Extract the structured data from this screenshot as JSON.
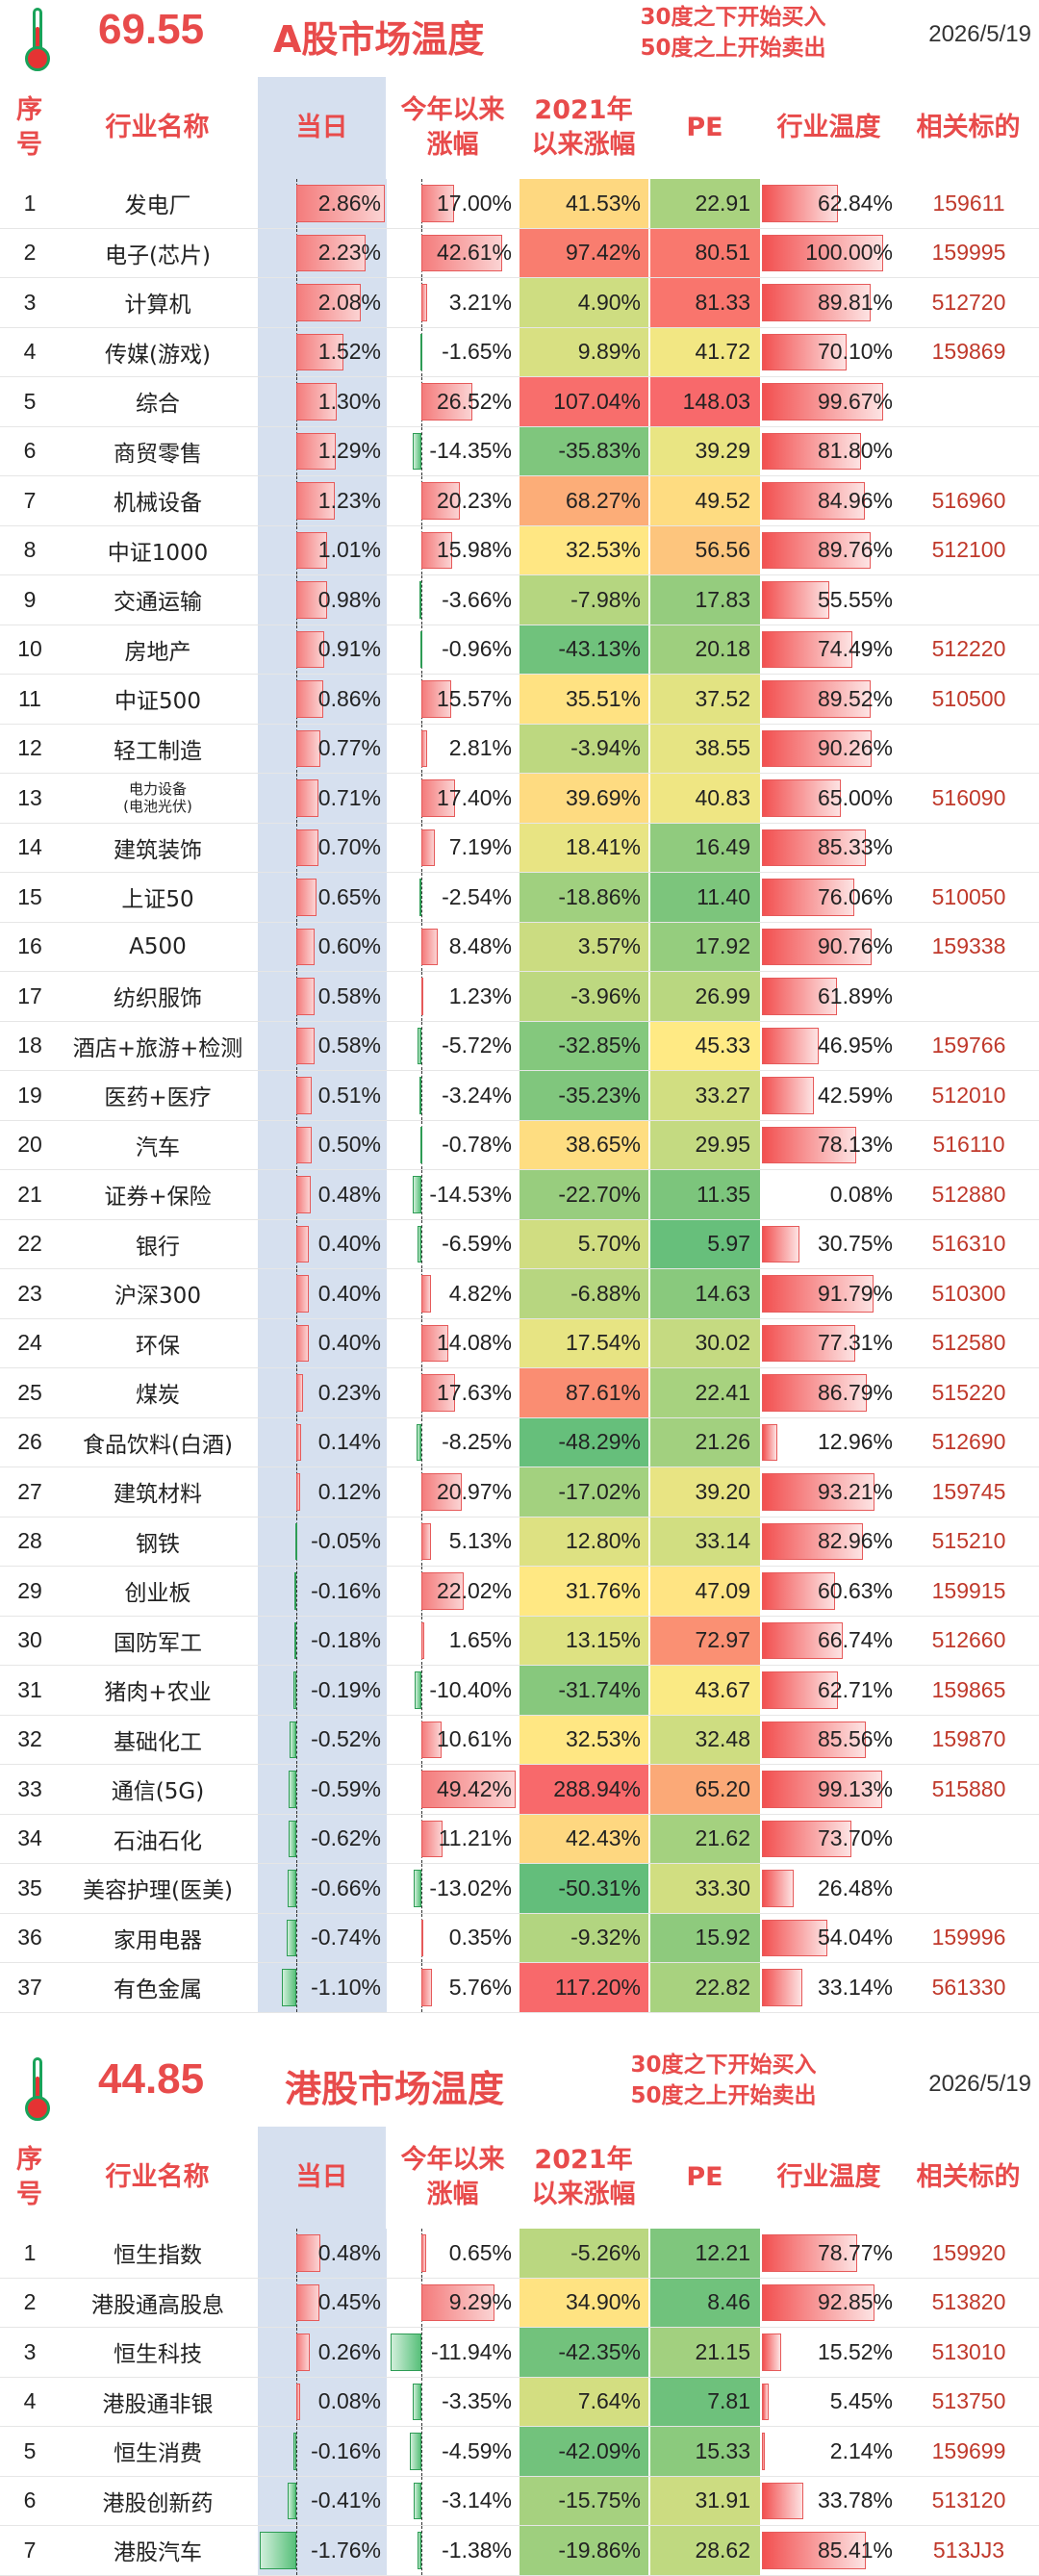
{
  "a_share": {
    "temperature": "69.55",
    "title": "A股市场温度",
    "note_buy": "30度之下开始买入",
    "note_sell": "50度之上开始卖出",
    "date": "2026/5/19",
    "columns": {
      "idx": "序号",
      "name": "行业名称",
      "day": "当日",
      "ytd": "今年以来涨幅",
      "since": "2021年以来涨幅",
      "pe": "PE",
      "temp": "行业温度",
      "code": "相关标的"
    },
    "rows": [
      {
        "idx": "1",
        "name": "发电厂",
        "day": "2.86%",
        "ytd": "17.00%",
        "since": "41.53%",
        "pe": "22.91",
        "temp": "62.84%",
        "code": "159611"
      },
      {
        "idx": "2",
        "name": "电子(芯片)",
        "day": "2.23%",
        "ytd": "42.61%",
        "since": "97.42%",
        "pe": "80.51",
        "temp": "100.00%",
        "code": "159995"
      },
      {
        "idx": "3",
        "name": "计算机",
        "day": "2.08%",
        "ytd": "3.21%",
        "since": "4.90%",
        "pe": "81.33",
        "temp": "89.81%",
        "code": "512720"
      },
      {
        "idx": "4",
        "name": "传媒(游戏)",
        "day": "1.52%",
        "ytd": "-1.65%",
        "since": "9.89%",
        "pe": "41.72",
        "temp": "70.10%",
        "code": "159869"
      },
      {
        "idx": "5",
        "name": "综合",
        "day": "1.30%",
        "ytd": "26.52%",
        "since": "107.04%",
        "pe": "148.03",
        "temp": "99.67%",
        "code": ""
      },
      {
        "idx": "6",
        "name": "商贸零售",
        "day": "1.29%",
        "ytd": "-14.35%",
        "since": "-35.83%",
        "pe": "39.29",
        "temp": "81.80%",
        "code": ""
      },
      {
        "idx": "7",
        "name": "机械设备",
        "day": "1.23%",
        "ytd": "20.23%",
        "since": "68.27%",
        "pe": "49.52",
        "temp": "84.96%",
        "code": "516960"
      },
      {
        "idx": "8",
        "name": "中证1000",
        "day": "1.01%",
        "ytd": "15.98%",
        "since": "32.53%",
        "pe": "56.56",
        "temp": "89.76%",
        "code": "512100"
      },
      {
        "idx": "9",
        "name": "交通运输",
        "day": "0.98%",
        "ytd": "-3.66%",
        "since": "-7.98%",
        "pe": "17.83",
        "temp": "55.55%",
        "code": ""
      },
      {
        "idx": "10",
        "name": "房地产",
        "day": "0.91%",
        "ytd": "-0.96%",
        "since": "-43.13%",
        "pe": "20.18",
        "temp": "74.49%",
        "code": "512220"
      },
      {
        "idx": "11",
        "name": "中证500",
        "day": "0.86%",
        "ytd": "15.57%",
        "since": "35.51%",
        "pe": "37.52",
        "temp": "89.52%",
        "code": "510500"
      },
      {
        "idx": "12",
        "name": "轻工制造",
        "day": "0.77%",
        "ytd": "2.81%",
        "since": "-3.94%",
        "pe": "38.55",
        "temp": "90.26%",
        "code": ""
      },
      {
        "idx": "13",
        "name": "电力设备",
        "name2": "(电池光伏)",
        "day": "0.71%",
        "ytd": "17.40%",
        "since": "39.69%",
        "pe": "40.83",
        "temp": "65.00%",
        "code": "516090"
      },
      {
        "idx": "14",
        "name": "建筑装饰",
        "day": "0.70%",
        "ytd": "7.19%",
        "since": "18.41%",
        "pe": "16.49",
        "temp": "85.33%",
        "code": ""
      },
      {
        "idx": "15",
        "name": "上证50",
        "day": "0.65%",
        "ytd": "-2.54%",
        "since": "-18.86%",
        "pe": "11.40",
        "temp": "76.06%",
        "code": "510050"
      },
      {
        "idx": "16",
        "name": "A500",
        "day": "0.60%",
        "ytd": "8.48%",
        "since": "3.57%",
        "pe": "17.92",
        "temp": "90.76%",
        "code": "159338"
      },
      {
        "idx": "17",
        "name": "纺织服饰",
        "day": "0.58%",
        "ytd": "1.23%",
        "since": "-3.96%",
        "pe": "26.99",
        "temp": "61.89%",
        "code": ""
      },
      {
        "idx": "18",
        "name": "酒店+旅游+检测",
        "day": "0.58%",
        "ytd": "-5.72%",
        "since": "-32.85%",
        "pe": "45.33",
        "temp": "46.95%",
        "code": "159766"
      },
      {
        "idx": "19",
        "name": "医药+医疗",
        "day": "0.51%",
        "ytd": "-3.24%",
        "since": "-35.23%",
        "pe": "33.27",
        "temp": "42.59%",
        "code": "512010"
      },
      {
        "idx": "20",
        "name": "汽车",
        "day": "0.50%",
        "ytd": "-0.78%",
        "since": "38.65%",
        "pe": "29.95",
        "temp": "78.13%",
        "code": "516110"
      },
      {
        "idx": "21",
        "name": "证券+保险",
        "day": "0.48%",
        "ytd": "-14.53%",
        "since": "-22.70%",
        "pe": "11.35",
        "temp": "0.08%",
        "code": "512880"
      },
      {
        "idx": "22",
        "name": "银行",
        "day": "0.40%",
        "ytd": "-6.59%",
        "since": "5.70%",
        "pe": "5.97",
        "temp": "30.75%",
        "code": "516310"
      },
      {
        "idx": "23",
        "name": "沪深300",
        "day": "0.40%",
        "ytd": "4.82%",
        "since": "-6.88%",
        "pe": "14.63",
        "temp": "91.79%",
        "code": "510300"
      },
      {
        "idx": "24",
        "name": "环保",
        "day": "0.40%",
        "ytd": "14.08%",
        "since": "17.54%",
        "pe": "30.02",
        "temp": "77.31%",
        "code": "512580"
      },
      {
        "idx": "25",
        "name": "煤炭",
        "day": "0.23%",
        "ytd": "17.63%",
        "since": "87.61%",
        "pe": "22.41",
        "temp": "86.79%",
        "code": "515220"
      },
      {
        "idx": "26",
        "name": "食品饮料(白酒)",
        "day": "0.14%",
        "ytd": "-8.25%",
        "since": "-48.29%",
        "pe": "21.26",
        "temp": "12.96%",
        "code": "512690"
      },
      {
        "idx": "27",
        "name": "建筑材料",
        "day": "0.12%",
        "ytd": "20.97%",
        "since": "-17.02%",
        "pe": "39.20",
        "temp": "93.21%",
        "code": "159745"
      },
      {
        "idx": "28",
        "name": "钢铁",
        "day": "-0.05%",
        "ytd": "5.13%",
        "since": "12.80%",
        "pe": "33.14",
        "temp": "82.96%",
        "code": "515210"
      },
      {
        "idx": "29",
        "name": "创业板",
        "day": "-0.16%",
        "ytd": "22.02%",
        "since": "31.76%",
        "pe": "47.09",
        "temp": "60.63%",
        "code": "159915"
      },
      {
        "idx": "30",
        "name": "国防军工",
        "day": "-0.18%",
        "ytd": "1.65%",
        "since": "13.15%",
        "pe": "72.97",
        "temp": "66.74%",
        "code": "512660"
      },
      {
        "idx": "31",
        "name": "猪肉+农业",
        "day": "-0.19%",
        "ytd": "-10.40%",
        "since": "-31.74%",
        "pe": "43.67",
        "temp": "62.71%",
        "code": "159865"
      },
      {
        "idx": "32",
        "name": "基础化工",
        "day": "-0.52%",
        "ytd": "10.61%",
        "since": "32.53%",
        "pe": "32.48",
        "temp": "85.56%",
        "code": "159870"
      },
      {
        "idx": "33",
        "name": "通信(5G)",
        "day": "-0.59%",
        "ytd": "49.42%",
        "since": "288.94%",
        "pe": "65.20",
        "temp": "99.13%",
        "code": "515880"
      },
      {
        "idx": "34",
        "name": "石油石化",
        "day": "-0.62%",
        "ytd": "11.21%",
        "since": "42.43%",
        "pe": "21.62",
        "temp": "73.70%",
        "code": ""
      },
      {
        "idx": "35",
        "name": "美容护理(医美)",
        "day": "-0.66%",
        "ytd": "-13.02%",
        "since": "-50.31%",
        "pe": "33.30",
        "temp": "26.48%",
        "code": ""
      },
      {
        "idx": "36",
        "name": "家用电器",
        "day": "-0.74%",
        "ytd": "0.35%",
        "since": "-9.32%",
        "pe": "15.92",
        "temp": "54.04%",
        "code": "159996"
      },
      {
        "idx": "37",
        "name": "有色金属",
        "day": "-1.10%",
        "ytd": "5.76%",
        "since": "117.20%",
        "pe": "22.82",
        "temp": "33.14%",
        "code": "561330"
      }
    ]
  },
  "hk_share": {
    "temperature": "44.85",
    "title": "港股市场温度",
    "note_buy": "30度之下开始买入",
    "note_sell": "50度之上开始卖出",
    "date": "2026/5/19",
    "columns": {
      "idx": "序号",
      "name": "行业名称",
      "day": "当日",
      "ytd": "今年以来涨幅",
      "since": "2021年以来涨幅",
      "pe": "PE",
      "temp": "行业温度",
      "code": "相关标的"
    },
    "rows": [
      {
        "idx": "1",
        "name": "恒生指数",
        "day": "0.48%",
        "ytd": "0.65%",
        "since": "-5.26%",
        "pe": "12.21",
        "temp": "78.77%",
        "code": "159920"
      },
      {
        "idx": "2",
        "name": "港股通高股息",
        "day": "0.45%",
        "ytd": "9.29%",
        "since": "34.90%",
        "pe": "8.46",
        "temp": "92.85%",
        "code": "513820"
      },
      {
        "idx": "3",
        "name": "恒生科技",
        "day": "0.26%",
        "ytd": "-11.94%",
        "since": "-42.35%",
        "pe": "21.15",
        "temp": "15.52%",
        "code": "513010"
      },
      {
        "idx": "4",
        "name": "港股通非银",
        "day": "0.08%",
        "ytd": "-3.35%",
        "since": "7.64%",
        "pe": "7.81",
        "temp": "5.45%",
        "code": "513750"
      },
      {
        "idx": "5",
        "name": "恒生消费",
        "day": "-0.16%",
        "ytd": "-4.59%",
        "since": "-42.09%",
        "pe": "15.33",
        "temp": "2.14%",
        "code": "159699"
      },
      {
        "idx": "6",
        "name": "港股创新药",
        "day": "-0.41%",
        "ytd": "-3.14%",
        "since": "-15.75%",
        "pe": "31.91",
        "temp": "33.78%",
        "code": "513120"
      },
      {
        "idx": "7",
        "name": "港股汽车",
        "day": "-1.76%",
        "ytd": "-1.38%",
        "since": "-19.86%",
        "pe": "28.62",
        "temp": "85.41%",
        "code": "513JJ3"
      }
    ]
  },
  "colors": {
    "accent": "#e84b4b",
    "day_bg": "#d6e0ef",
    "up": "#f47c7c",
    "down": "#58c07a",
    "code": "#c0392b"
  }
}
